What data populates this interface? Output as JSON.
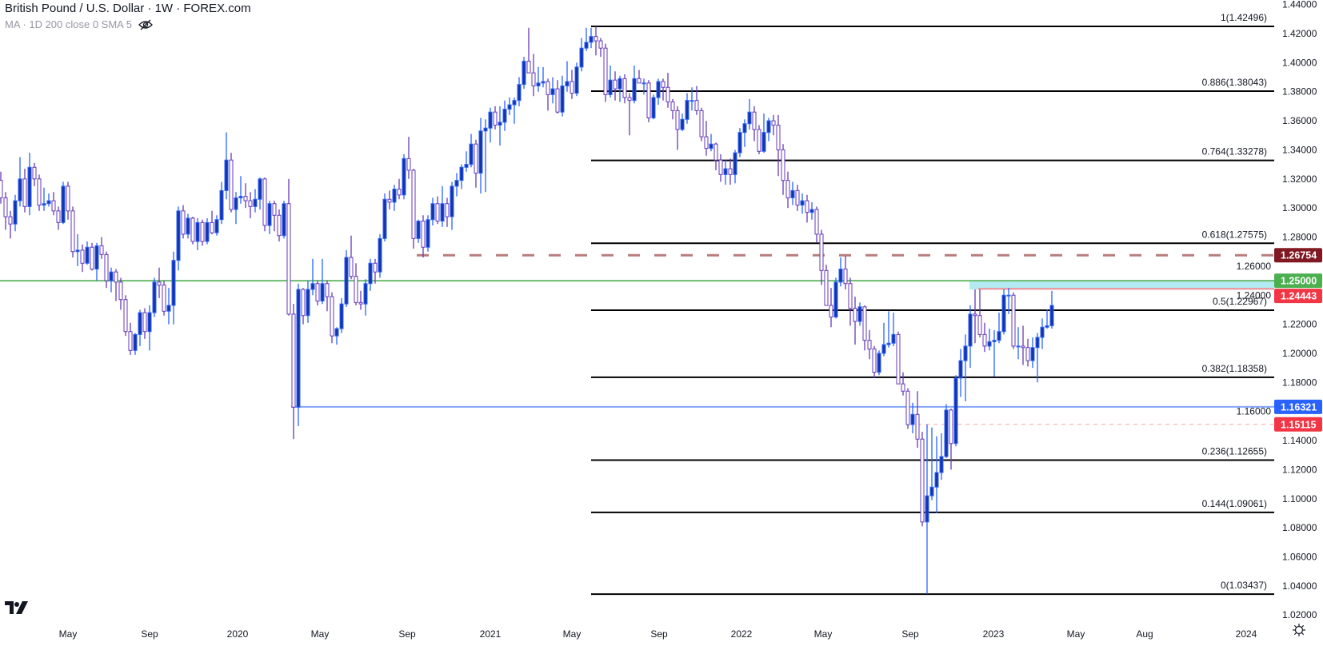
{
  "header": {
    "title": "British Pound / U.S. Dollar · 1W · FOREX.com",
    "indicator": "MA · 1D 200 close 0 SMA 5",
    "indicator_icon": "eye-hidden-icon"
  },
  "colors": {
    "up_body": "#1534a8",
    "up_border": "#2962ff",
    "down_body": "#ffffff",
    "down_border": "#673ab7",
    "fib_line": "#000000",
    "text": "#131722"
  },
  "chart_data": {
    "type": "candlestick",
    "interval": "1W",
    "symbol": "British Pound / U.S. Dollar",
    "source": "FOREX.com",
    "ylim": [
      1.02,
      1.44
    ],
    "y_ticks": [
      "1.44000",
      "1.42000",
      "1.40000",
      "1.38000",
      "1.36000",
      "1.34000",
      "1.32000",
      "1.30000",
      "1.28000",
      "1.26000",
      "1.24000",
      "1.22000",
      "1.20000",
      "1.18000",
      "1.16000",
      "1.14000",
      "1.12000",
      "1.10000",
      "1.08000",
      "1.06000",
      "1.04000",
      "1.02000"
    ],
    "x_ticks": [
      "May",
      "Sep",
      "2020",
      "May",
      "Sep",
      "2021",
      "May",
      "Sep",
      "2022",
      "May",
      "Sep",
      "2023",
      "May",
      "Aug",
      "2024"
    ],
    "grid": false,
    "ohlc_fields": [
      "open",
      "high",
      "low",
      "close"
    ],
    "candles": [
      [
        1.319,
        1.325,
        1.303,
        1.307
      ],
      [
        1.307,
        1.311,
        1.285,
        1.294
      ],
      [
        1.294,
        1.298,
        1.279,
        1.289
      ],
      [
        1.289,
        1.309,
        1.284,
        1.305
      ],
      [
        1.305,
        1.335,
        1.301,
        1.32
      ],
      [
        1.32,
        1.327,
        1.297,
        1.301
      ],
      [
        1.301,
        1.338,
        1.295,
        1.328
      ],
      [
        1.328,
        1.331,
        1.315,
        1.32
      ],
      [
        1.32,
        1.323,
        1.298,
        1.302
      ],
      [
        1.302,
        1.314,
        1.298,
        1.303
      ],
      [
        1.303,
        1.31,
        1.301,
        1.305
      ],
      [
        1.305,
        1.311,
        1.295,
        1.298
      ],
      [
        1.298,
        1.301,
        1.285,
        1.29
      ],
      [
        1.29,
        1.318,
        1.289,
        1.315
      ],
      [
        1.315,
        1.318,
        1.292,
        1.298
      ],
      [
        1.298,
        1.301,
        1.266,
        1.27
      ],
      [
        1.27,
        1.282,
        1.26,
        1.271
      ],
      [
        1.271,
        1.275,
        1.256,
        1.262
      ],
      [
        1.262,
        1.277,
        1.261,
        1.273
      ],
      [
        1.273,
        1.276,
        1.257,
        1.258
      ],
      [
        1.258,
        1.276,
        1.25,
        1.274
      ],
      [
        1.274,
        1.28,
        1.265,
        1.268
      ],
      [
        1.268,
        1.27,
        1.245,
        1.25
      ],
      [
        1.25,
        1.259,
        1.242,
        1.256
      ],
      [
        1.256,
        1.258,
        1.236,
        1.249
      ],
      [
        1.249,
        1.252,
        1.23,
        1.237
      ],
      [
        1.237,
        1.24,
        1.212,
        1.215
      ],
      [
        1.215,
        1.221,
        1.199,
        1.202
      ],
      [
        1.202,
        1.214,
        1.199,
        1.213
      ],
      [
        1.213,
        1.23,
        1.205,
        1.228
      ],
      [
        1.228,
        1.231,
        1.21,
        1.215
      ],
      [
        1.215,
        1.233,
        1.202,
        1.228
      ],
      [
        1.228,
        1.252,
        1.225,
        1.249
      ],
      [
        1.249,
        1.259,
        1.238,
        1.247
      ],
      [
        1.247,
        1.25,
        1.226,
        1.229
      ],
      [
        1.229,
        1.245,
        1.22,
        1.233
      ],
      [
        1.233,
        1.27,
        1.22,
        1.264
      ],
      [
        1.264,
        1.301,
        1.257,
        1.298
      ],
      [
        1.298,
        1.302,
        1.279,
        1.282
      ],
      [
        1.282,
        1.296,
        1.279,
        1.293
      ],
      [
        1.293,
        1.294,
        1.275,
        1.277
      ],
      [
        1.277,
        1.293,
        1.271,
        1.29
      ],
      [
        1.29,
        1.292,
        1.274,
        1.277
      ],
      [
        1.277,
        1.293,
        1.275,
        1.29
      ],
      [
        1.29,
        1.298,
        1.282,
        1.283
      ],
      [
        1.283,
        1.295,
        1.281,
        1.292
      ],
      [
        1.292,
        1.318,
        1.289,
        1.312
      ],
      [
        1.312,
        1.352,
        1.306,
        1.333
      ],
      [
        1.333,
        1.338,
        1.297,
        1.299
      ],
      [
        1.299,
        1.311,
        1.289,
        1.307
      ],
      [
        1.307,
        1.322,
        1.303,
        1.308
      ],
      [
        1.308,
        1.317,
        1.3,
        1.305
      ],
      [
        1.305,
        1.311,
        1.293,
        1.301
      ],
      [
        1.301,
        1.313,
        1.297,
        1.306
      ],
      [
        1.306,
        1.321,
        1.299,
        1.32
      ],
      [
        1.32,
        1.321,
        1.284,
        1.288
      ],
      [
        1.288,
        1.305,
        1.282,
        1.303
      ],
      [
        1.303,
        1.305,
        1.284,
        1.295
      ],
      [
        1.295,
        1.299,
        1.277,
        1.281
      ],
      [
        1.281,
        1.305,
        1.279,
        1.303
      ],
      [
        1.303,
        1.32,
        1.226,
        1.227
      ],
      [
        1.227,
        1.234,
        1.141,
        1.163
      ],
      [
        1.163,
        1.248,
        1.15,
        1.244
      ],
      [
        1.244,
        1.245,
        1.22,
        1.226
      ],
      [
        1.226,
        1.25,
        1.221,
        1.244
      ],
      [
        1.244,
        1.265,
        1.24,
        1.248
      ],
      [
        1.248,
        1.25,
        1.233,
        1.236
      ],
      [
        1.236,
        1.265,
        1.234,
        1.248
      ],
      [
        1.248,
        1.25,
        1.229,
        1.239
      ],
      [
        1.239,
        1.242,
        1.207,
        1.212
      ],
      [
        1.212,
        1.218,
        1.206,
        1.217
      ],
      [
        1.217,
        1.238,
        1.214,
        1.234
      ],
      [
        1.234,
        1.271,
        1.232,
        1.266
      ],
      [
        1.266,
        1.281,
        1.251,
        1.253
      ],
      [
        1.253,
        1.262,
        1.233,
        1.235
      ],
      [
        1.235,
        1.243,
        1.23,
        1.234
      ],
      [
        1.234,
        1.251,
        1.226,
        1.248
      ],
      [
        1.248,
        1.265,
        1.243,
        1.262
      ],
      [
        1.262,
        1.265,
        1.248,
        1.256
      ],
      [
        1.256,
        1.282,
        1.252,
        1.279
      ],
      [
        1.279,
        1.31,
        1.277,
        1.306
      ],
      [
        1.306,
        1.312,
        1.299,
        1.304
      ],
      [
        1.304,
        1.316,
        1.298,
        1.313
      ],
      [
        1.313,
        1.32,
        1.306,
        1.309
      ],
      [
        1.309,
        1.337,
        1.306,
        1.334
      ],
      [
        1.334,
        1.349,
        1.32,
        1.326
      ],
      [
        1.326,
        1.327,
        1.272,
        1.279
      ],
      [
        1.279,
        1.292,
        1.276,
        1.291
      ],
      [
        1.291,
        1.295,
        1.266,
        1.273
      ],
      [
        1.273,
        1.295,
        1.27,
        1.292
      ],
      [
        1.292,
        1.307,
        1.288,
        1.303
      ],
      [
        1.303,
        1.308,
        1.289,
        1.291
      ],
      [
        1.291,
        1.315,
        1.287,
        1.303
      ],
      [
        1.303,
        1.307,
        1.287,
        1.294
      ],
      [
        1.294,
        1.318,
        1.285,
        1.315
      ],
      [
        1.315,
        1.324,
        1.308,
        1.319
      ],
      [
        1.319,
        1.33,
        1.313,
        1.328
      ],
      [
        1.328,
        1.339,
        1.325,
        1.33
      ],
      [
        1.33,
        1.351,
        1.328,
        1.344
      ],
      [
        1.344,
        1.347,
        1.314,
        1.324
      ],
      [
        1.324,
        1.362,
        1.31,
        1.353
      ],
      [
        1.353,
        1.361,
        1.311,
        1.355
      ],
      [
        1.355,
        1.369,
        1.345,
        1.366
      ],
      [
        1.366,
        1.37,
        1.354,
        1.357
      ],
      [
        1.357,
        1.37,
        1.343,
        1.359
      ],
      [
        1.359,
        1.374,
        1.353,
        1.368
      ],
      [
        1.368,
        1.376,
        1.364,
        1.371
      ],
      [
        1.371,
        1.376,
        1.358,
        1.374
      ],
      [
        1.374,
        1.39,
        1.37,
        1.385
      ],
      [
        1.385,
        1.404,
        1.382,
        1.401
      ],
      [
        1.401,
        1.424,
        1.395,
        1.393
      ],
      [
        1.393,
        1.406,
        1.377,
        1.384
      ],
      [
        1.384,
        1.397,
        1.38,
        1.386
      ],
      [
        1.386,
        1.397,
        1.383,
        1.387
      ],
      [
        1.387,
        1.389,
        1.367,
        1.378
      ],
      [
        1.378,
        1.39,
        1.372,
        1.382
      ],
      [
        1.382,
        1.388,
        1.365,
        1.366
      ],
      [
        1.366,
        1.391,
        1.363,
        1.384
      ],
      [
        1.384,
        1.401,
        1.38,
        1.387
      ],
      [
        1.387,
        1.395,
        1.375,
        1.379
      ],
      [
        1.379,
        1.4,
        1.377,
        1.397
      ],
      [
        1.397,
        1.417,
        1.394,
        1.41
      ],
      [
        1.41,
        1.424,
        1.408,
        1.414
      ],
      [
        1.414,
        1.424,
        1.41,
        1.418
      ],
      [
        1.418,
        1.4249,
        1.405,
        1.415
      ],
      [
        1.415,
        1.417,
        1.404,
        1.41
      ],
      [
        1.41,
        1.413,
        1.373,
        1.378
      ],
      [
        1.378,
        1.398,
        1.376,
        1.388
      ],
      [
        1.388,
        1.394,
        1.374,
        1.382
      ],
      [
        1.382,
        1.391,
        1.373,
        1.389
      ],
      [
        1.389,
        1.392,
        1.372,
        1.376
      ],
      [
        1.376,
        1.379,
        1.35,
        1.374
      ],
      [
        1.374,
        1.398,
        1.372,
        1.389
      ],
      [
        1.389,
        1.395,
        1.386,
        1.386
      ],
      [
        1.386,
        1.389,
        1.378,
        1.386
      ],
      [
        1.386,
        1.388,
        1.359,
        1.362
      ],
      [
        1.362,
        1.378,
        1.361,
        1.376
      ],
      [
        1.376,
        1.389,
        1.371,
        1.387
      ],
      [
        1.387,
        1.389,
        1.374,
        1.383
      ],
      [
        1.383,
        1.393,
        1.369,
        1.373
      ],
      [
        1.373,
        1.375,
        1.361,
        1.367
      ],
      [
        1.367,
        1.37,
        1.34,
        1.354
      ],
      [
        1.354,
        1.365,
        1.353,
        1.361
      ],
      [
        1.361,
        1.379,
        1.358,
        1.374
      ],
      [
        1.374,
        1.383,
        1.367,
        1.374
      ],
      [
        1.374,
        1.384,
        1.364,
        1.367
      ],
      [
        1.367,
        1.369,
        1.346,
        1.349
      ],
      [
        1.349,
        1.36,
        1.336,
        1.341
      ],
      [
        1.341,
        1.351,
        1.339,
        1.344
      ],
      [
        1.344,
        1.345,
        1.326,
        1.333
      ],
      [
        1.333,
        1.337,
        1.318,
        1.323
      ],
      [
        1.323,
        1.333,
        1.316,
        1.327
      ],
      [
        1.327,
        1.334,
        1.316,
        1.323
      ],
      [
        1.323,
        1.34,
        1.317,
        1.338
      ],
      [
        1.338,
        1.355,
        1.335,
        1.352
      ],
      [
        1.352,
        1.361,
        1.342,
        1.358
      ],
      [
        1.358,
        1.375,
        1.354,
        1.366
      ],
      [
        1.366,
        1.37,
        1.346,
        1.354
      ],
      [
        1.354,
        1.357,
        1.337,
        1.339
      ],
      [
        1.339,
        1.365,
        1.338,
        1.352
      ],
      [
        1.352,
        1.362,
        1.346,
        1.36
      ],
      [
        1.36,
        1.364,
        1.35,
        1.357
      ],
      [
        1.357,
        1.364,
        1.322,
        1.34
      ],
      [
        1.34,
        1.344,
        1.309,
        1.319
      ],
      [
        1.319,
        1.325,
        1.3,
        1.307
      ],
      [
        1.307,
        1.318,
        1.302,
        1.312
      ],
      [
        1.312,
        1.316,
        1.298,
        1.302
      ],
      [
        1.302,
        1.31,
        1.296,
        1.305
      ],
      [
        1.305,
        1.309,
        1.29,
        1.297
      ],
      [
        1.297,
        1.304,
        1.292,
        1.299
      ],
      [
        1.299,
        1.301,
        1.276,
        1.282
      ],
      [
        1.282,
        1.285,
        1.247,
        1.257
      ],
      [
        1.257,
        1.261,
        1.233,
        1.233
      ],
      [
        1.233,
        1.245,
        1.218,
        1.225
      ],
      [
        1.225,
        1.252,
        1.224,
        1.249
      ],
      [
        1.249,
        1.266,
        1.246,
        1.258
      ],
      [
        1.258,
        1.267,
        1.244,
        1.248
      ],
      [
        1.248,
        1.252,
        1.219,
        1.231
      ],
      [
        1.231,
        1.239,
        1.206,
        1.222
      ],
      [
        1.222,
        1.235,
        1.219,
        1.232
      ],
      [
        1.232,
        1.233,
        1.202,
        1.209
      ],
      [
        1.209,
        1.216,
        1.196,
        1.203
      ],
      [
        1.203,
        1.205,
        1.183,
        1.187
      ],
      [
        1.187,
        1.202,
        1.185,
        1.2
      ],
      [
        1.2,
        1.221,
        1.198,
        1.206
      ],
      [
        1.206,
        1.229,
        1.204,
        1.207
      ],
      [
        1.207,
        1.228,
        1.205,
        1.213
      ],
      [
        1.213,
        1.215,
        1.179,
        1.179
      ],
      [
        1.179,
        1.187,
        1.171,
        1.174
      ],
      [
        1.174,
        1.176,
        1.148,
        1.151
      ],
      [
        1.151,
        1.166,
        1.145,
        1.158
      ],
      [
        1.158,
        1.174,
        1.135,
        1.141
      ],
      [
        1.141,
        1.146,
        1.081,
        1.084
      ],
      [
        1.084,
        1.151,
        1.0345,
        1.102
      ],
      [
        1.102,
        1.149,
        1.099,
        1.108
      ],
      [
        1.108,
        1.143,
        1.09,
        1.118
      ],
      [
        1.118,
        1.145,
        1.113,
        1.129
      ],
      [
        1.129,
        1.165,
        1.128,
        1.161
      ],
      [
        1.161,
        1.162,
        1.12,
        1.138
      ],
      [
        1.138,
        1.185,
        1.136,
        1.183
      ],
      [
        1.183,
        1.203,
        1.17,
        1.195
      ],
      [
        1.195,
        1.213,
        1.167,
        1.205
      ],
      [
        1.205,
        1.233,
        1.19,
        1.227
      ],
      [
        1.227,
        1.244,
        1.207,
        1.226
      ],
      [
        1.226,
        1.244,
        1.211,
        1.213
      ],
      [
        1.213,
        1.221,
        1.201,
        1.205
      ],
      [
        1.205,
        1.217,
        1.202,
        1.208
      ],
      [
        1.208,
        1.216,
        1.184,
        1.209
      ],
      [
        1.209,
        1.228,
        1.207,
        1.215
      ],
      [
        1.215,
        1.244,
        1.213,
        1.24
      ],
      [
        1.24,
        1.245,
        1.227,
        1.24
      ],
      [
        1.24,
        1.242,
        1.203,
        1.205
      ],
      [
        1.205,
        1.218,
        1.196,
        1.205
      ],
      [
        1.205,
        1.219,
        1.192,
        1.204
      ],
      [
        1.204,
        1.21,
        1.191,
        1.195
      ],
      [
        1.195,
        1.211,
        1.19,
        1.204
      ],
      [
        1.204,
        1.214,
        1.18,
        1.211
      ],
      [
        1.211,
        1.224,
        1.203,
        1.218
      ],
      [
        1.218,
        1.23,
        1.217,
        1.219
      ],
      [
        1.219,
        1.243,
        1.217,
        1.233
      ]
    ],
    "fibonacci": [
      {
        "label": "1(1.42496)",
        "level": 1,
        "price": 1.42496
      },
      {
        "label": "0.886(1.38043)",
        "level": 0.886,
        "price": 1.38043
      },
      {
        "label": "0.764(1.33278)",
        "level": 0.764,
        "price": 1.33278
      },
      {
        "label": "0.618(1.27575)",
        "level": 0.618,
        "price": 1.27575
      },
      {
        "label": "0.5(1.22967)",
        "level": 0.5,
        "price": 1.22967
      },
      {
        "label": "0.382(1.18358)",
        "level": 0.382,
        "price": 1.18358
      },
      {
        "label": "0.236(1.12655)",
        "level": 0.236,
        "price": 1.12655
      },
      {
        "label": "0.144(1.09061)",
        "level": 0.144,
        "price": 1.09061
      },
      {
        "label": "0(1.03437)",
        "level": 0,
        "price": 1.03437
      }
    ],
    "horizontal_levels": [
      {
        "id": "dashed-maroon",
        "price": 1.26754,
        "label": "1.26754",
        "color": "#b87d7d",
        "badge_color": "#801922",
        "style": "dashed"
      },
      {
        "id": "green",
        "price": 1.25,
        "label": "1.25000",
        "color": "#6cbb6f",
        "badge_color": "#4caf50",
        "style": "solid"
      },
      {
        "id": "red",
        "price": 1.24443,
        "label": "1.24443",
        "color": "#f28b91",
        "badge_color": "#f23645",
        "style": "solid"
      },
      {
        "id": "blue",
        "price": 1.16321,
        "label": "1.16321",
        "color": "#82a5f8",
        "badge_color": "#2962ff",
        "style": "solid"
      },
      {
        "id": "pink-dashed",
        "price": 1.15115,
        "label": "1.15115",
        "color": "#f7a1a6",
        "badge_color": "#f23645",
        "style": "thin-dashed"
      }
    ],
    "zone": {
      "from": 1.24443,
      "to": 1.25,
      "color": "#b2ebf2"
    }
  }
}
